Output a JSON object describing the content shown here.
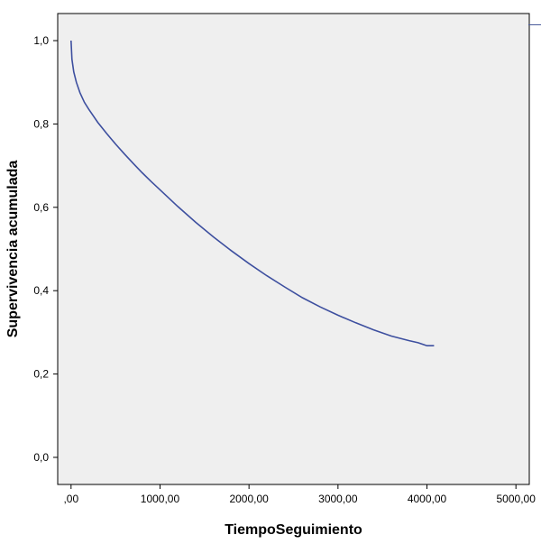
{
  "chart_data": {
    "type": "line",
    "title": "",
    "xlabel": "TiempoSeguimiento",
    "ylabel": "Supervivencia acumulada",
    "xlim": [
      -150,
      5150
    ],
    "ylim": [
      -0.065,
      1.065
    ],
    "x_ticks": [
      0,
      1000,
      2000,
      3000,
      4000,
      5000
    ],
    "x_tick_labels": [
      ",00",
      "1000,00",
      "2000,00",
      "3000,00",
      "4000,00",
      "5000,00"
    ],
    "y_ticks": [
      0.0,
      0.2,
      0.4,
      0.6,
      0.8,
      1.0
    ],
    "y_tick_labels": [
      "0,0",
      "0,2",
      "0,4",
      "0,6",
      "0,8",
      "1,0"
    ],
    "grid": false,
    "plot_background": "#efefef",
    "series": [
      {
        "color": "#3d4f9f",
        "x": [
          0,
          10,
          30,
          60,
          100,
          150,
          200,
          300,
          400,
          500,
          600,
          700,
          800,
          900,
          1000,
          1200,
          1400,
          1600,
          1800,
          2000,
          2200,
          2400,
          2600,
          2800,
          3000,
          3200,
          3400,
          3600,
          3800,
          3900,
          4000,
          4080
        ],
        "y": [
          1.0,
          0.955,
          0.925,
          0.9,
          0.875,
          0.852,
          0.835,
          0.804,
          0.777,
          0.752,
          0.728,
          0.705,
          0.683,
          0.662,
          0.642,
          0.602,
          0.564,
          0.529,
          0.496,
          0.465,
          0.436,
          0.409,
          0.383,
          0.361,
          0.341,
          0.323,
          0.306,
          0.291,
          0.28,
          0.275,
          0.268,
          0.268
        ]
      }
    ]
  }
}
